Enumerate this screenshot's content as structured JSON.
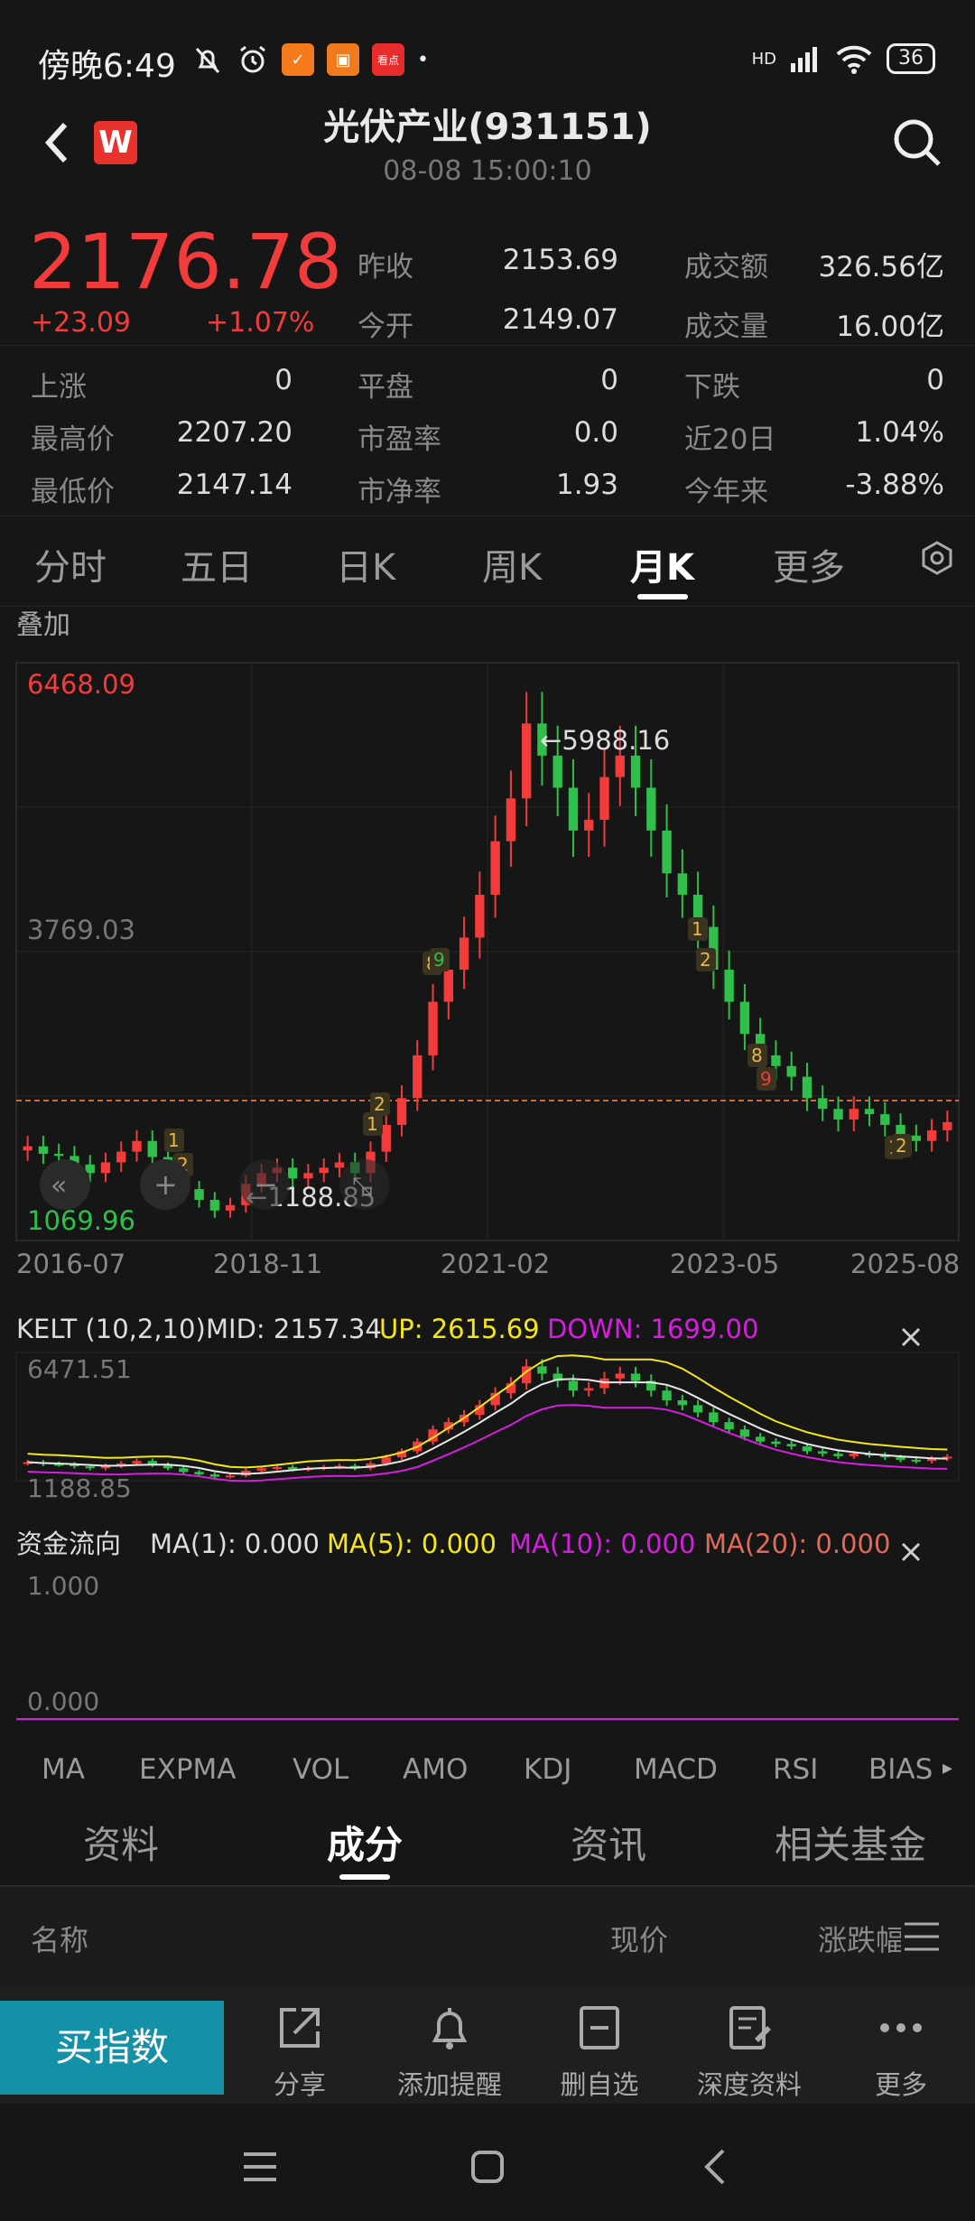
{
  "status": {
    "time": "傍晚6:49",
    "signal": "HD",
    "battery": "36"
  },
  "header": {
    "title": "光伏产业(931151)",
    "subtitle": "08-08 15:00:10",
    "logo": "W"
  },
  "quote": {
    "price": "2176.78",
    "change": "+23.09",
    "change_pct": "+1.07%",
    "prev_close_label": "昨收",
    "prev_close": "2153.69",
    "open_label": "今开",
    "open": "2149.07",
    "amount_label": "成交额",
    "amount": "326.56亿",
    "volume_label": "成交量",
    "volume": "16.00亿"
  },
  "stats": [
    [
      {
        "k": "上涨",
        "v": "0"
      },
      {
        "k": "平盘",
        "v": "0"
      },
      {
        "k": "下跌",
        "v": "0"
      }
    ],
    [
      {
        "k": "最高价",
        "v": "2207.20"
      },
      {
        "k": "市盈率",
        "v": "0.0"
      },
      {
        "k": "近20日",
        "v": "1.04%"
      }
    ],
    [
      {
        "k": "最低价",
        "v": "2147.14"
      },
      {
        "k": "市净率",
        "v": "1.93"
      },
      {
        "k": "今年来",
        "v": "-3.88%"
      }
    ]
  ],
  "tabs": [
    "分时",
    "五日",
    "日K",
    "周K",
    "月K",
    "更多"
  ],
  "active_tab": "月K",
  "chart": {
    "overlay_label": "叠加",
    "y_top": "6468.09",
    "y_mid": "3769.03",
    "y_bottom": "1069.96",
    "max_label": "5988.16",
    "min_label": "1188.85",
    "x_labels": [
      "2016-07",
      "2018-11",
      "2021-02",
      "2023-05",
      "2025-08"
    ],
    "markers": [
      "1",
      "2",
      "1",
      "2",
      "8",
      "9",
      "1",
      "2",
      "8",
      "9",
      "1",
      "2"
    ]
  },
  "kelt": {
    "name": "KELT (10,2,10)",
    "mid": "MID: 2157.34",
    "up": "UP: 2615.69",
    "down": "DOWN: 1699.00",
    "y_top": "6471.51",
    "y_bottom": "1188.85"
  },
  "flow": {
    "name": "资金流向",
    "ma1": "MA(1): 0.000",
    "ma5": "MA(5): 0.000",
    "ma10": "MA(10): 0.000",
    "ma20": "MA(20): 0.000",
    "y_top": "1.000",
    "y_bottom": "0.000"
  },
  "indicators": [
    "MA",
    "EXPMA",
    "VOL",
    "AMO",
    "KDJ",
    "MACD",
    "RSI",
    "BIAS"
  ],
  "subtabs": [
    "资料",
    "成分",
    "资讯",
    "相关基金"
  ],
  "active_subtab": "成分",
  "list_head": {
    "name": "名称",
    "price": "现价",
    "change": "涨跌幅"
  },
  "bottom": {
    "buy": "买指数",
    "share": "分享",
    "alert": "添加提醒",
    "remove": "删自选",
    "deep": "深度资料",
    "more": "更多"
  },
  "colors": {
    "up": "#f23c3c",
    "down": "#2fbf4a",
    "accent": "#1491a6",
    "yellow": "#f5e61a",
    "magenta": "#d61ee0",
    "salmon": "#e06b5a"
  }
}
